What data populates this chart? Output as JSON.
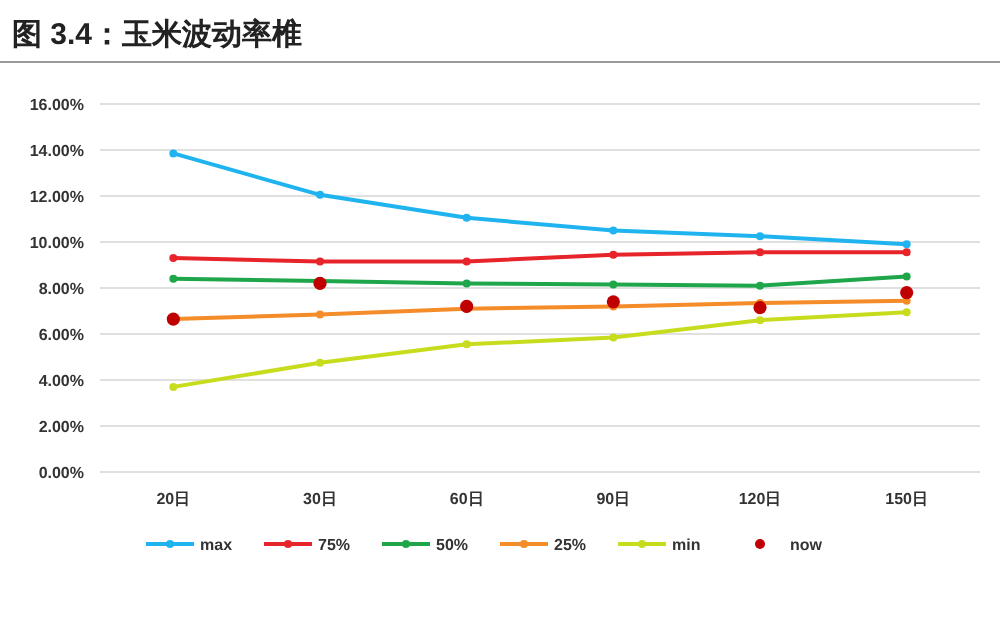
{
  "chart_data": {
    "type": "line",
    "title": "图 3.4：玉米波动率椎",
    "categories": [
      "20日",
      "30日",
      "60日",
      "90日",
      "120日",
      "150日"
    ],
    "series": [
      {
        "name": "max",
        "color": "#1fb4ef",
        "values": [
          13.85,
          12.05,
          11.05,
          10.5,
          10.25,
          9.9
        ]
      },
      {
        "name": "75%",
        "color": "#e8242b",
        "values": [
          9.3,
          9.15,
          9.15,
          9.45,
          9.55,
          9.55
        ]
      },
      {
        "name": "50%",
        "color": "#1fa64a",
        "values": [
          8.4,
          8.3,
          8.2,
          8.15,
          8.1,
          8.5
        ]
      },
      {
        "name": "25%",
        "color": "#f58c2a",
        "values": [
          6.65,
          6.85,
          7.1,
          7.2,
          7.35,
          7.45
        ]
      },
      {
        "name": "min",
        "color": "#c8dc1e",
        "values": [
          3.7,
          4.75,
          5.55,
          5.85,
          6.6,
          6.95
        ]
      },
      {
        "name": "now",
        "color": "#c00000",
        "type": "scatter",
        "values": [
          6.65,
          8.2,
          7.2,
          7.4,
          7.15,
          7.8
        ]
      }
    ],
    "ylim": [
      0,
      16
    ],
    "yticks": [
      {
        "value": 0,
        "label": "0.00%"
      },
      {
        "value": 2,
        "label": "2.00%"
      },
      {
        "value": 4,
        "label": "4.00%"
      },
      {
        "value": 6,
        "label": "6.00%"
      },
      {
        "value": 8,
        "label": "8.00%"
      },
      {
        "value": 10,
        "label": "10.00%"
      },
      {
        "value": 12,
        "label": "12.00%"
      },
      {
        "value": 14,
        "label": "14.00%"
      },
      {
        "value": 16,
        "label": "16.00%"
      }
    ],
    "grid": "y",
    "legend": "bottom",
    "marker": "circle",
    "line_style": "solid"
  }
}
